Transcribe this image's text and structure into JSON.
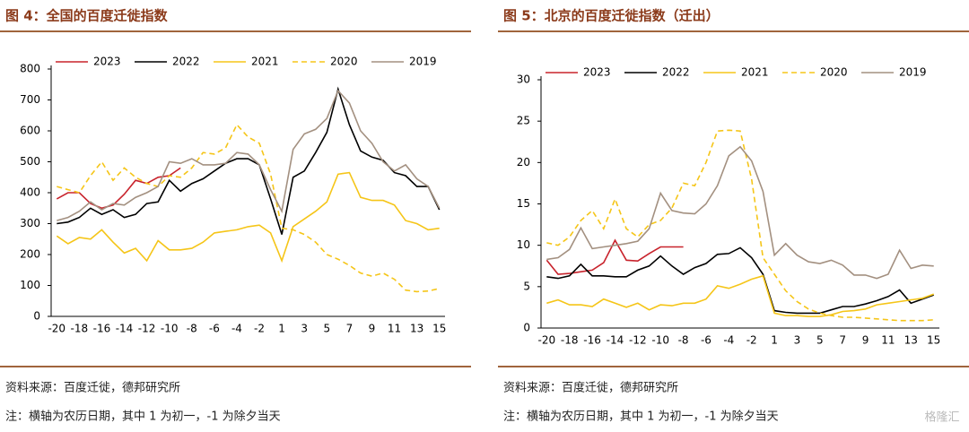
{
  "chart_data": [
    {
      "type": "line",
      "title": "图 4：全国的百度迁徙指数",
      "source": "资料来源：百度迁徙，德邦研究所",
      "note": "注：横轴为农历日期，其中 1 为初一，-1 为除夕当天",
      "categories": [
        "-20",
        null,
        "-18",
        null,
        "-16",
        null,
        "-14",
        null,
        "-12",
        null,
        "-10",
        null,
        "-8",
        null,
        "-6",
        null,
        "-4",
        null,
        "-2",
        null,
        "1",
        null,
        "3",
        null,
        "5",
        null,
        "7",
        null,
        "9",
        null,
        "11",
        null,
        "13",
        null,
        "15"
      ],
      "ylim": [
        0,
        800
      ],
      "yticks": [
        0,
        100,
        200,
        300,
        400,
        500,
        600,
        700,
        800
      ],
      "series": [
        {
          "name": "2023",
          "color": "#c8232c",
          "style": "solid",
          "values": [
            380,
            400,
            400,
            365,
            350,
            360,
            395,
            440,
            430,
            450,
            455,
            480,
            null,
            null,
            null,
            null,
            null,
            null,
            null,
            null,
            null,
            null,
            null,
            null,
            null,
            null,
            null,
            null,
            null,
            null,
            null,
            null,
            null,
            null,
            null
          ]
        },
        {
          "name": "2022",
          "color": "#000000",
          "style": "solid",
          "values": [
            300,
            305,
            320,
            350,
            330,
            345,
            320,
            330,
            365,
            370,
            440,
            405,
            430,
            445,
            470,
            495,
            510,
            510,
            490,
            380,
            265,
            450,
            470,
            530,
            595,
            735,
            620,
            535,
            515,
            505,
            465,
            455,
            420,
            420,
            345
          ]
        },
        {
          "name": "2021",
          "color": "#f5c518",
          "style": "solid",
          "values": [
            260,
            235,
            255,
            250,
            280,
            240,
            205,
            220,
            180,
            245,
            215,
            215,
            220,
            240,
            270,
            275,
            280,
            290,
            295,
            270,
            180,
            290,
            315,
            340,
            370,
            460,
            465,
            385,
            375,
            375,
            360,
            310,
            300,
            280,
            285
          ]
        },
        {
          "name": "2020",
          "color": "#f5c518",
          "style": "dashed",
          "values": [
            420,
            410,
            400,
            455,
            500,
            440,
            480,
            450,
            430,
            420,
            455,
            450,
            480,
            530,
            525,
            545,
            620,
            580,
            560,
            460,
            285,
            280,
            265,
            240,
            200,
            185,
            165,
            140,
            130,
            140,
            120,
            85,
            80,
            82,
            90
          ]
        },
        {
          "name": "2019",
          "color": "#a39080",
          "style": "solid",
          "values": [
            310,
            320,
            340,
            370,
            345,
            365,
            360,
            385,
            400,
            420,
            500,
            495,
            510,
            490,
            490,
            495,
            530,
            525,
            490,
            410,
            340,
            540,
            590,
            605,
            640,
            730,
            690,
            600,
            560,
            500,
            470,
            490,
            445,
            420,
            350
          ]
        }
      ]
    },
    {
      "type": "line",
      "title": "图 5：北京的百度迁徙指数（迁出）",
      "source": "资料来源：百度迁徙，德邦研究所",
      "note": "注：横轴为农历日期，其中 1 为初一，-1 为除夕当天",
      "categories": [
        "-20",
        null,
        "-18",
        null,
        "-16",
        null,
        "-14",
        null,
        "-12",
        null,
        "-10",
        null,
        "-8",
        null,
        "-6",
        null,
        "-4",
        null,
        "-2",
        null,
        "1",
        null,
        "3",
        null,
        "5",
        null,
        "7",
        null,
        "9",
        null,
        "11",
        null,
        "13",
        null,
        "15"
      ],
      "ylim": [
        0,
        30
      ],
      "yticks": [
        0,
        5,
        10,
        15,
        20,
        25,
        30
      ],
      "series": [
        {
          "name": "2023",
          "color": "#c8232c",
          "style": "solid",
          "values": [
            8.2,
            6.5,
            6.6,
            6.8,
            7.0,
            7.9,
            10.6,
            8.2,
            8.1,
            9.0,
            9.8,
            9.8,
            9.8,
            null,
            null,
            null,
            null,
            null,
            null,
            null,
            null,
            null,
            null,
            null,
            null,
            null,
            null,
            null,
            null,
            null,
            null,
            null,
            null,
            null,
            null
          ]
        },
        {
          "name": "2022",
          "color": "#000000",
          "style": "solid",
          "values": [
            6.2,
            6.0,
            6.3,
            7.7,
            6.3,
            6.3,
            6.2,
            6.2,
            7.0,
            7.5,
            8.7,
            7.5,
            6.5,
            7.3,
            7.8,
            8.9,
            9.0,
            9.7,
            8.5,
            6.5,
            2.1,
            1.9,
            1.8,
            1.8,
            1.8,
            2.2,
            2.6,
            2.6,
            2.9,
            3.3,
            3.8,
            4.6,
            3.0,
            3.5,
            4.0
          ]
        },
        {
          "name": "2021",
          "color": "#f5c518",
          "style": "solid",
          "values": [
            3.0,
            3.4,
            2.8,
            2.8,
            2.6,
            3.5,
            3.0,
            2.5,
            3.0,
            2.2,
            2.8,
            2.7,
            3.0,
            3.0,
            3.5,
            5.1,
            4.8,
            5.3,
            5.9,
            6.3,
            1.8,
            1.5,
            1.5,
            1.4,
            1.4,
            1.6,
            2.0,
            2.1,
            2.3,
            2.8,
            3.0,
            3.2,
            3.4,
            3.6,
            4.1
          ]
        },
        {
          "name": "2020",
          "color": "#f5c518",
          "style": "dashed",
          "values": [
            10.3,
            10.0,
            11.0,
            13.0,
            14.2,
            12.0,
            15.6,
            12.0,
            11.0,
            12.5,
            13.0,
            14.5,
            17.5,
            17.2,
            20.0,
            23.8,
            23.9,
            23.8,
            18.0,
            8.5,
            6.5,
            4.5,
            3.2,
            2.3,
            1.8,
            1.5,
            1.3,
            1.3,
            1.2,
            1.1,
            1.0,
            0.9,
            0.9,
            0.9,
            1.0
          ]
        },
        {
          "name": "2019",
          "color": "#a39080",
          "style": "solid",
          "values": [
            8.3,
            8.5,
            9.5,
            12.1,
            9.6,
            9.8,
            10.0,
            10.2,
            10.5,
            12.0,
            16.3,
            14.2,
            13.9,
            13.8,
            15.0,
            17.2,
            20.8,
            21.9,
            20.2,
            16.5,
            8.8,
            10.2,
            8.8,
            8.0,
            7.8,
            8.2,
            7.6,
            6.4,
            6.4,
            6.0,
            6.5,
            9.4,
            7.2,
            7.6,
            7.5
          ]
        }
      ]
    }
  ],
  "watermark": "格隆汇"
}
